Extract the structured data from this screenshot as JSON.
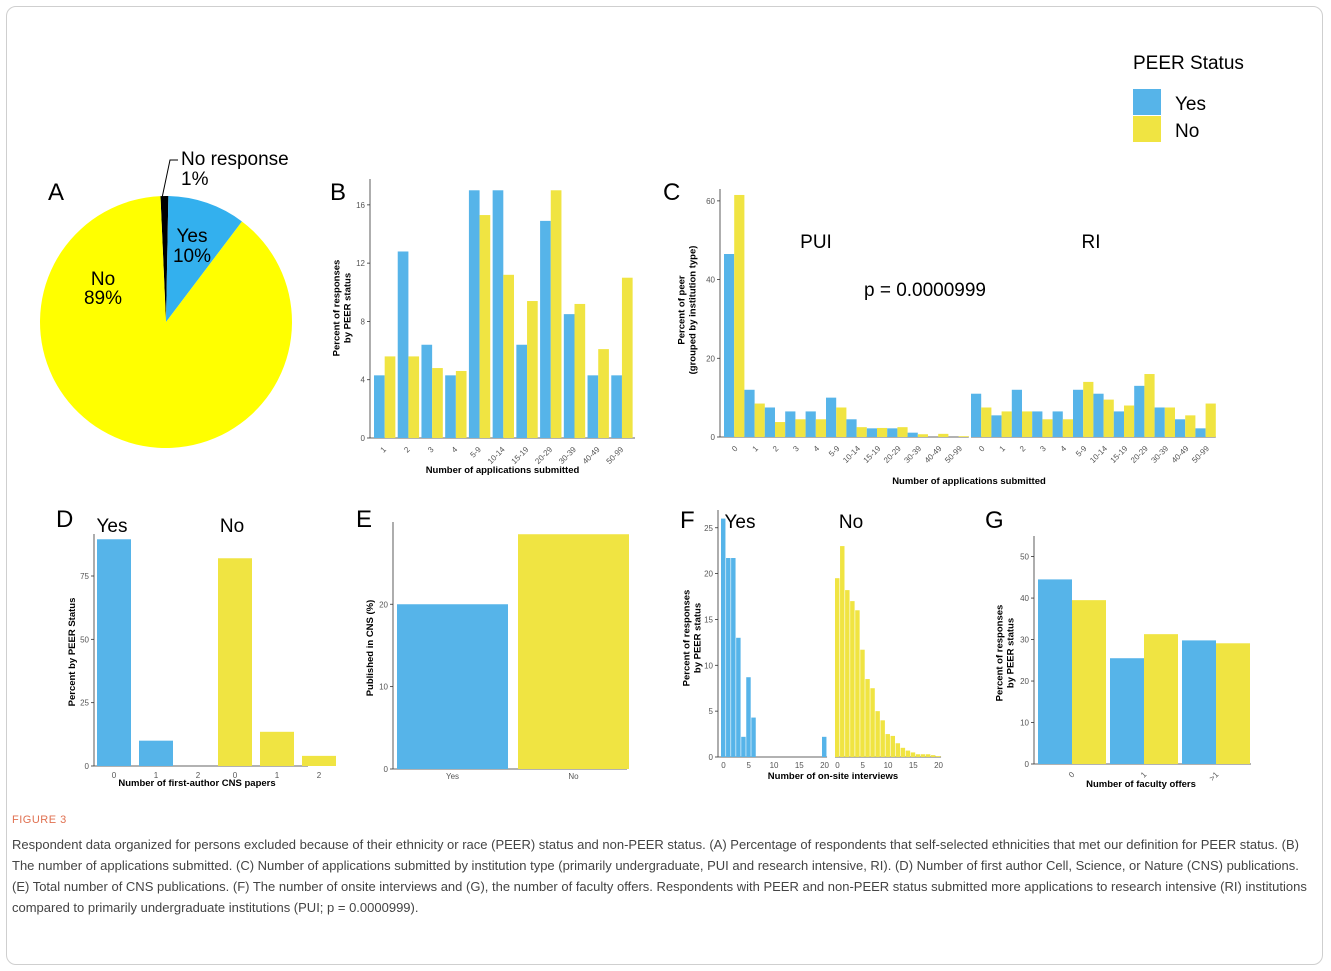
{
  "legend": {
    "title": "PEER Status",
    "items": [
      {
        "label": "Yes",
        "color": "#56b4e9"
      },
      {
        "label": "No",
        "color": "#f0e442"
      }
    ]
  },
  "panel_labels": {
    "A": "A",
    "B": "B",
    "C": "C",
    "D": "D",
    "E": "E",
    "F": "F",
    "G": "G"
  },
  "chart_data": [
    {
      "id": "A",
      "type": "pie",
      "slices": [
        {
          "label": "Yes",
          "pct_label": "10%",
          "value": 10,
          "color": "#33b0ee"
        },
        {
          "label": "No",
          "pct_label": "89%",
          "value": 89,
          "color": "#ffff00"
        },
        {
          "label": "No response",
          "pct_label": "1%",
          "value": 1,
          "color": "#000000"
        }
      ]
    },
    {
      "id": "B",
      "type": "bar",
      "xlabel": "Number of applications submitted",
      "ylabel": [
        "Percent of responses",
        "by PEER status"
      ],
      "ylim": [
        0,
        17.5
      ],
      "yticks": [
        0,
        4,
        8,
        12,
        16
      ],
      "categories": [
        "1",
        "2",
        "3",
        "4",
        "5-9",
        "10-14",
        "15-19",
        "20-29",
        "30-39",
        "40-49",
        "50-99"
      ],
      "series": [
        {
          "name": "Yes",
          "values": [
            4.3,
            12.8,
            6.4,
            4.3,
            17.0,
            17.0,
            6.4,
            14.9,
            8.5,
            4.3,
            4.3
          ]
        },
        {
          "name": "No",
          "values": [
            5.6,
            5.6,
            4.8,
            4.6,
            15.3,
            11.2,
            9.4,
            17.0,
            9.2,
            6.1,
            11.0
          ]
        }
      ]
    },
    {
      "id": "C",
      "type": "bar",
      "xlabel": "Number of applications submitted",
      "ylabel": [
        "Percent of peer",
        "(grouped by institution type)"
      ],
      "ylim": [
        0,
        62
      ],
      "yticks": [
        0,
        20,
        40,
        60
      ],
      "annotation": "p = 0.0000999",
      "groups": [
        {
          "name": "PUI",
          "categories": [
            "0",
            "1",
            "2",
            "3",
            "4",
            "5-9",
            "10-14",
            "15-19",
            "20-29",
            "30-39",
            "40-49",
            "50-99"
          ],
          "series": [
            {
              "name": "Yes",
              "values": [
                46.5,
                12.0,
                7.5,
                6.5,
                6.5,
                10.0,
                4.5,
                2.2,
                2.2,
                1.1,
                0,
                0
              ]
            },
            {
              "name": "No",
              "values": [
                61.5,
                8.5,
                3.8,
                4.5,
                4.5,
                7.5,
                2.5,
                2.3,
                2.5,
                0.7,
                0.8,
                0.2
              ]
            }
          ]
        },
        {
          "name": "RI",
          "categories": [
            "0",
            "1",
            "2",
            "3",
            "4",
            "5-9",
            "10-14",
            "15-19",
            "20-29",
            "30-39",
            "40-49",
            "50-99"
          ],
          "series": [
            {
              "name": "Yes",
              "values": [
                11.0,
                5.5,
                12.0,
                6.5,
                6.5,
                12.0,
                11.0,
                6.5,
                13.0,
                7.5,
                4.5,
                2.2
              ]
            },
            {
              "name": "No",
              "values": [
                7.5,
                6.5,
                6.5,
                4.5,
                4.5,
                14.0,
                9.5,
                8.0,
                16.0,
                7.5,
                5.5,
                8.5
              ]
            }
          ]
        }
      ]
    },
    {
      "id": "D",
      "type": "bar",
      "xlabel": "Number of first-author CNS papers",
      "ylabel": [
        "Percent by PEER Status"
      ],
      "ylim": [
        0,
        90
      ],
      "yticks": [
        0,
        25,
        50,
        75
      ],
      "groups": [
        {
          "name": "Yes",
          "categories": [
            "0",
            "1",
            "2"
          ],
          "values": [
            89.5,
            10.0,
            0
          ]
        },
        {
          "name": "No",
          "categories": [
            "0",
            "1",
            "2"
          ],
          "values": [
            82.0,
            13.5,
            4.0
          ]
        }
      ]
    },
    {
      "id": "E",
      "type": "bar",
      "xlabel": "",
      "ylabel": [
        "Published in CNS (%)"
      ],
      "ylim": [
        0,
        29.5
      ],
      "yticks": [
        0,
        10,
        20
      ],
      "categories": [
        "Yes",
        "No"
      ],
      "values": [
        20.0,
        28.5
      ]
    },
    {
      "id": "F",
      "type": "bar",
      "xlabel": "Number of on-site interviews",
      "ylabel": [
        "Percent of responses",
        "by PEER status"
      ],
      "ylim": [
        0,
        26.5
      ],
      "yticks": [
        0,
        5,
        10,
        15,
        20,
        25
      ],
      "xticks": [
        0,
        5,
        10,
        15,
        20
      ],
      "groups": [
        {
          "name": "Yes",
          "x": [
            0,
            1,
            2,
            3,
            4,
            5,
            6,
            20
          ],
          "values": [
            26.0,
            21.7,
            21.7,
            13.0,
            2.2,
            8.7,
            4.3,
            2.2
          ]
        },
        {
          "name": "No",
          "x": [
            0,
            1,
            2,
            3,
            4,
            5,
            6,
            7,
            8,
            9,
            10,
            11,
            12,
            13,
            14,
            15,
            16,
            17,
            18,
            19,
            20
          ],
          "values": [
            19.5,
            23.0,
            18.2,
            17.0,
            16.0,
            11.7,
            8.5,
            7.5,
            5.0,
            4.0,
            2.5,
            2.3,
            1.5,
            1.0,
            0.7,
            0.5,
            0.3,
            0.3,
            0.3,
            0.2,
            0.1
          ]
        }
      ]
    },
    {
      "id": "G",
      "type": "bar",
      "xlabel": "Number of faculty offers",
      "ylabel": [
        "Percent of responses",
        "by PEER status"
      ],
      "ylim": [
        0,
        54
      ],
      "yticks": [
        0,
        10,
        20,
        30,
        40,
        50
      ],
      "categories": [
        "0",
        "1",
        ">1"
      ],
      "series": [
        {
          "name": "Yes",
          "values": [
            44.5,
            25.5,
            29.8
          ]
        },
        {
          "name": "No",
          "values": [
            39.5,
            31.3,
            29.1
          ]
        }
      ]
    }
  ],
  "caption": {
    "label": "FIGURE 3",
    "text": "Respondent data organized for persons excluded because of their ethnicity or race (PEER) status and non-PEER status. (A) Percentage of respondents that self-selected ethnicities that met our definition for PEER status. (B) The number of applications submitted. (C) Number of applications submitted by institution type (primarily undergraduate, PUI and research intensive, RI). (D) Number of first author Cell, Science, or Nature (CNS) publications. (E) Total number of CNS publications. (F) The number of onsite interviews and (G), the number of faculty offers. Respondents with PEER and non-PEER status submitted more applications to research intensive (RI) institutions compared to primarily undergraduate institutions (PUI; p = 0.0000999)."
  }
}
